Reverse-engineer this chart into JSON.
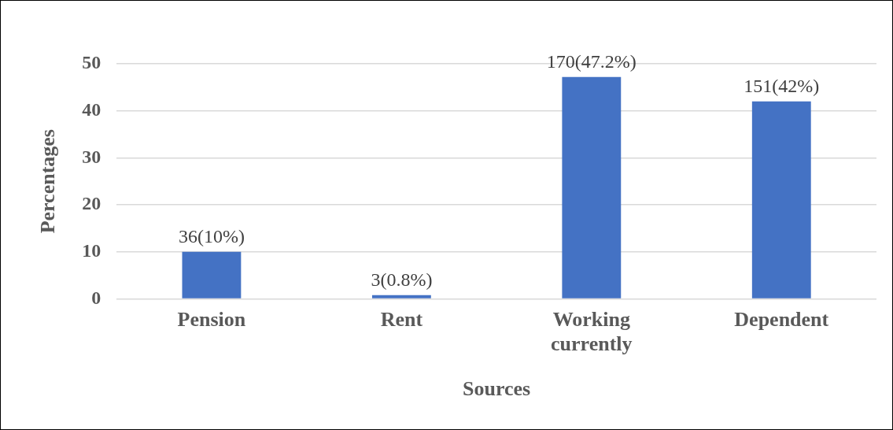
{
  "chart_data": {
    "type": "bar",
    "xlabel": "Sources",
    "ylabel": "Percentages",
    "categories": [
      "Pension",
      "Rent",
      "Working currently",
      "Dependent"
    ],
    "values": [
      10,
      0.8,
      47.2,
      42
    ],
    "value_labels": [
      "36(10%)",
      "3(0.8%)",
      "170(47.2%)",
      "151(42%)"
    ],
    "color": "#4472c4",
    "ylim": [
      0,
      50
    ],
    "yticks": [
      0,
      10,
      20,
      30,
      40,
      50
    ],
    "grid": "y",
    "legend": false
  }
}
